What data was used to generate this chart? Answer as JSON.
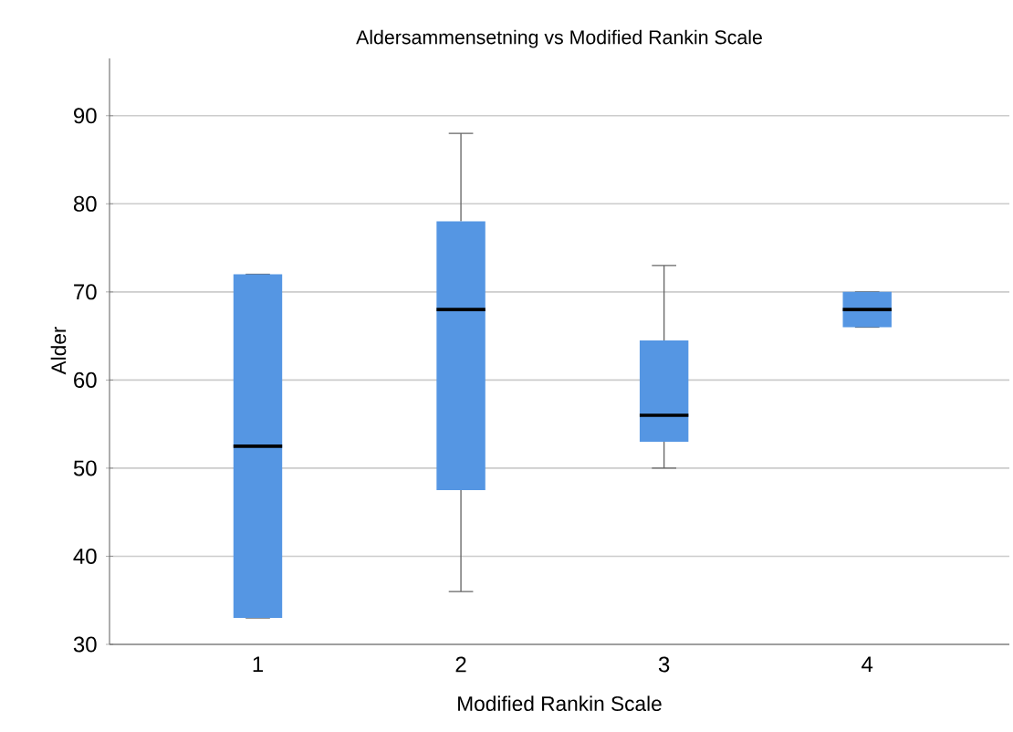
{
  "chart_data": {
    "type": "box",
    "title": "Aldersammensetning vs Modified Rankin Scale",
    "xlabel": "Modified Rankin Scale",
    "ylabel": "Alder",
    "categories": [
      "1",
      "2",
      "3",
      "4"
    ],
    "color": "#5596e3",
    "boxes": [
      {
        "low": 33,
        "q1": 33,
        "median": 52.5,
        "q3": 72,
        "high": 72
      },
      {
        "low": 36,
        "q1": 47.5,
        "median": 68,
        "q3": 78,
        "high": 88
      },
      {
        "low": 50,
        "q1": 53,
        "median": 56,
        "q3": 64.5,
        "high": 73
      },
      {
        "low": 66,
        "q1": 66,
        "median": 68,
        "q3": 70,
        "high": 70
      }
    ],
    "ylim": [
      30,
      96.5
    ],
    "yticks": [
      30,
      40,
      50,
      60,
      70,
      80,
      90
    ],
    "grid": "y"
  }
}
